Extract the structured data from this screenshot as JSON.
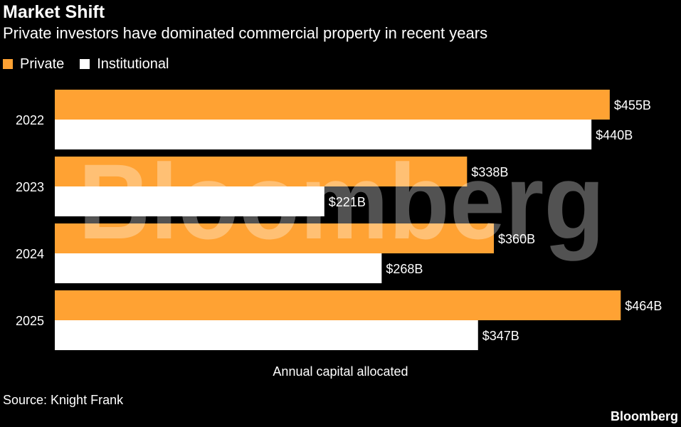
{
  "colors": {
    "background": "#000000",
    "private": "#ffa233",
    "institutional": "#ffffff",
    "text": "#ffffff"
  },
  "header": {
    "title": "Market Shift",
    "subtitle": "Private investors have dominated commercial property in recent years"
  },
  "footer": {
    "source": "Source: Knight Frank",
    "brand": "Bloomberg"
  },
  "watermark_text": "Bloomberg",
  "chart_data": {
    "type": "bar",
    "orientation": "horizontal",
    "title": "Market Shift",
    "subtitle": "Private investors have dominated commercial property in recent years",
    "categories": [
      "2022",
      "2023",
      "2024",
      "2025"
    ],
    "series": [
      {
        "name": "Private",
        "values": [
          455,
          338,
          360,
          464
        ],
        "labels": [
          "$455B",
          "$338B",
          "$360B",
          "$464B"
        ]
      },
      {
        "name": "Institutional",
        "values": [
          440,
          221,
          268,
          347
        ],
        "labels": [
          "$440B",
          "$221B",
          "$268B",
          "$347B"
        ]
      }
    ],
    "xlabel": "Annual capital allocated",
    "ylabel": "",
    "xlim": [
      0,
      500
    ],
    "grid": false,
    "legend": "top-left"
  }
}
